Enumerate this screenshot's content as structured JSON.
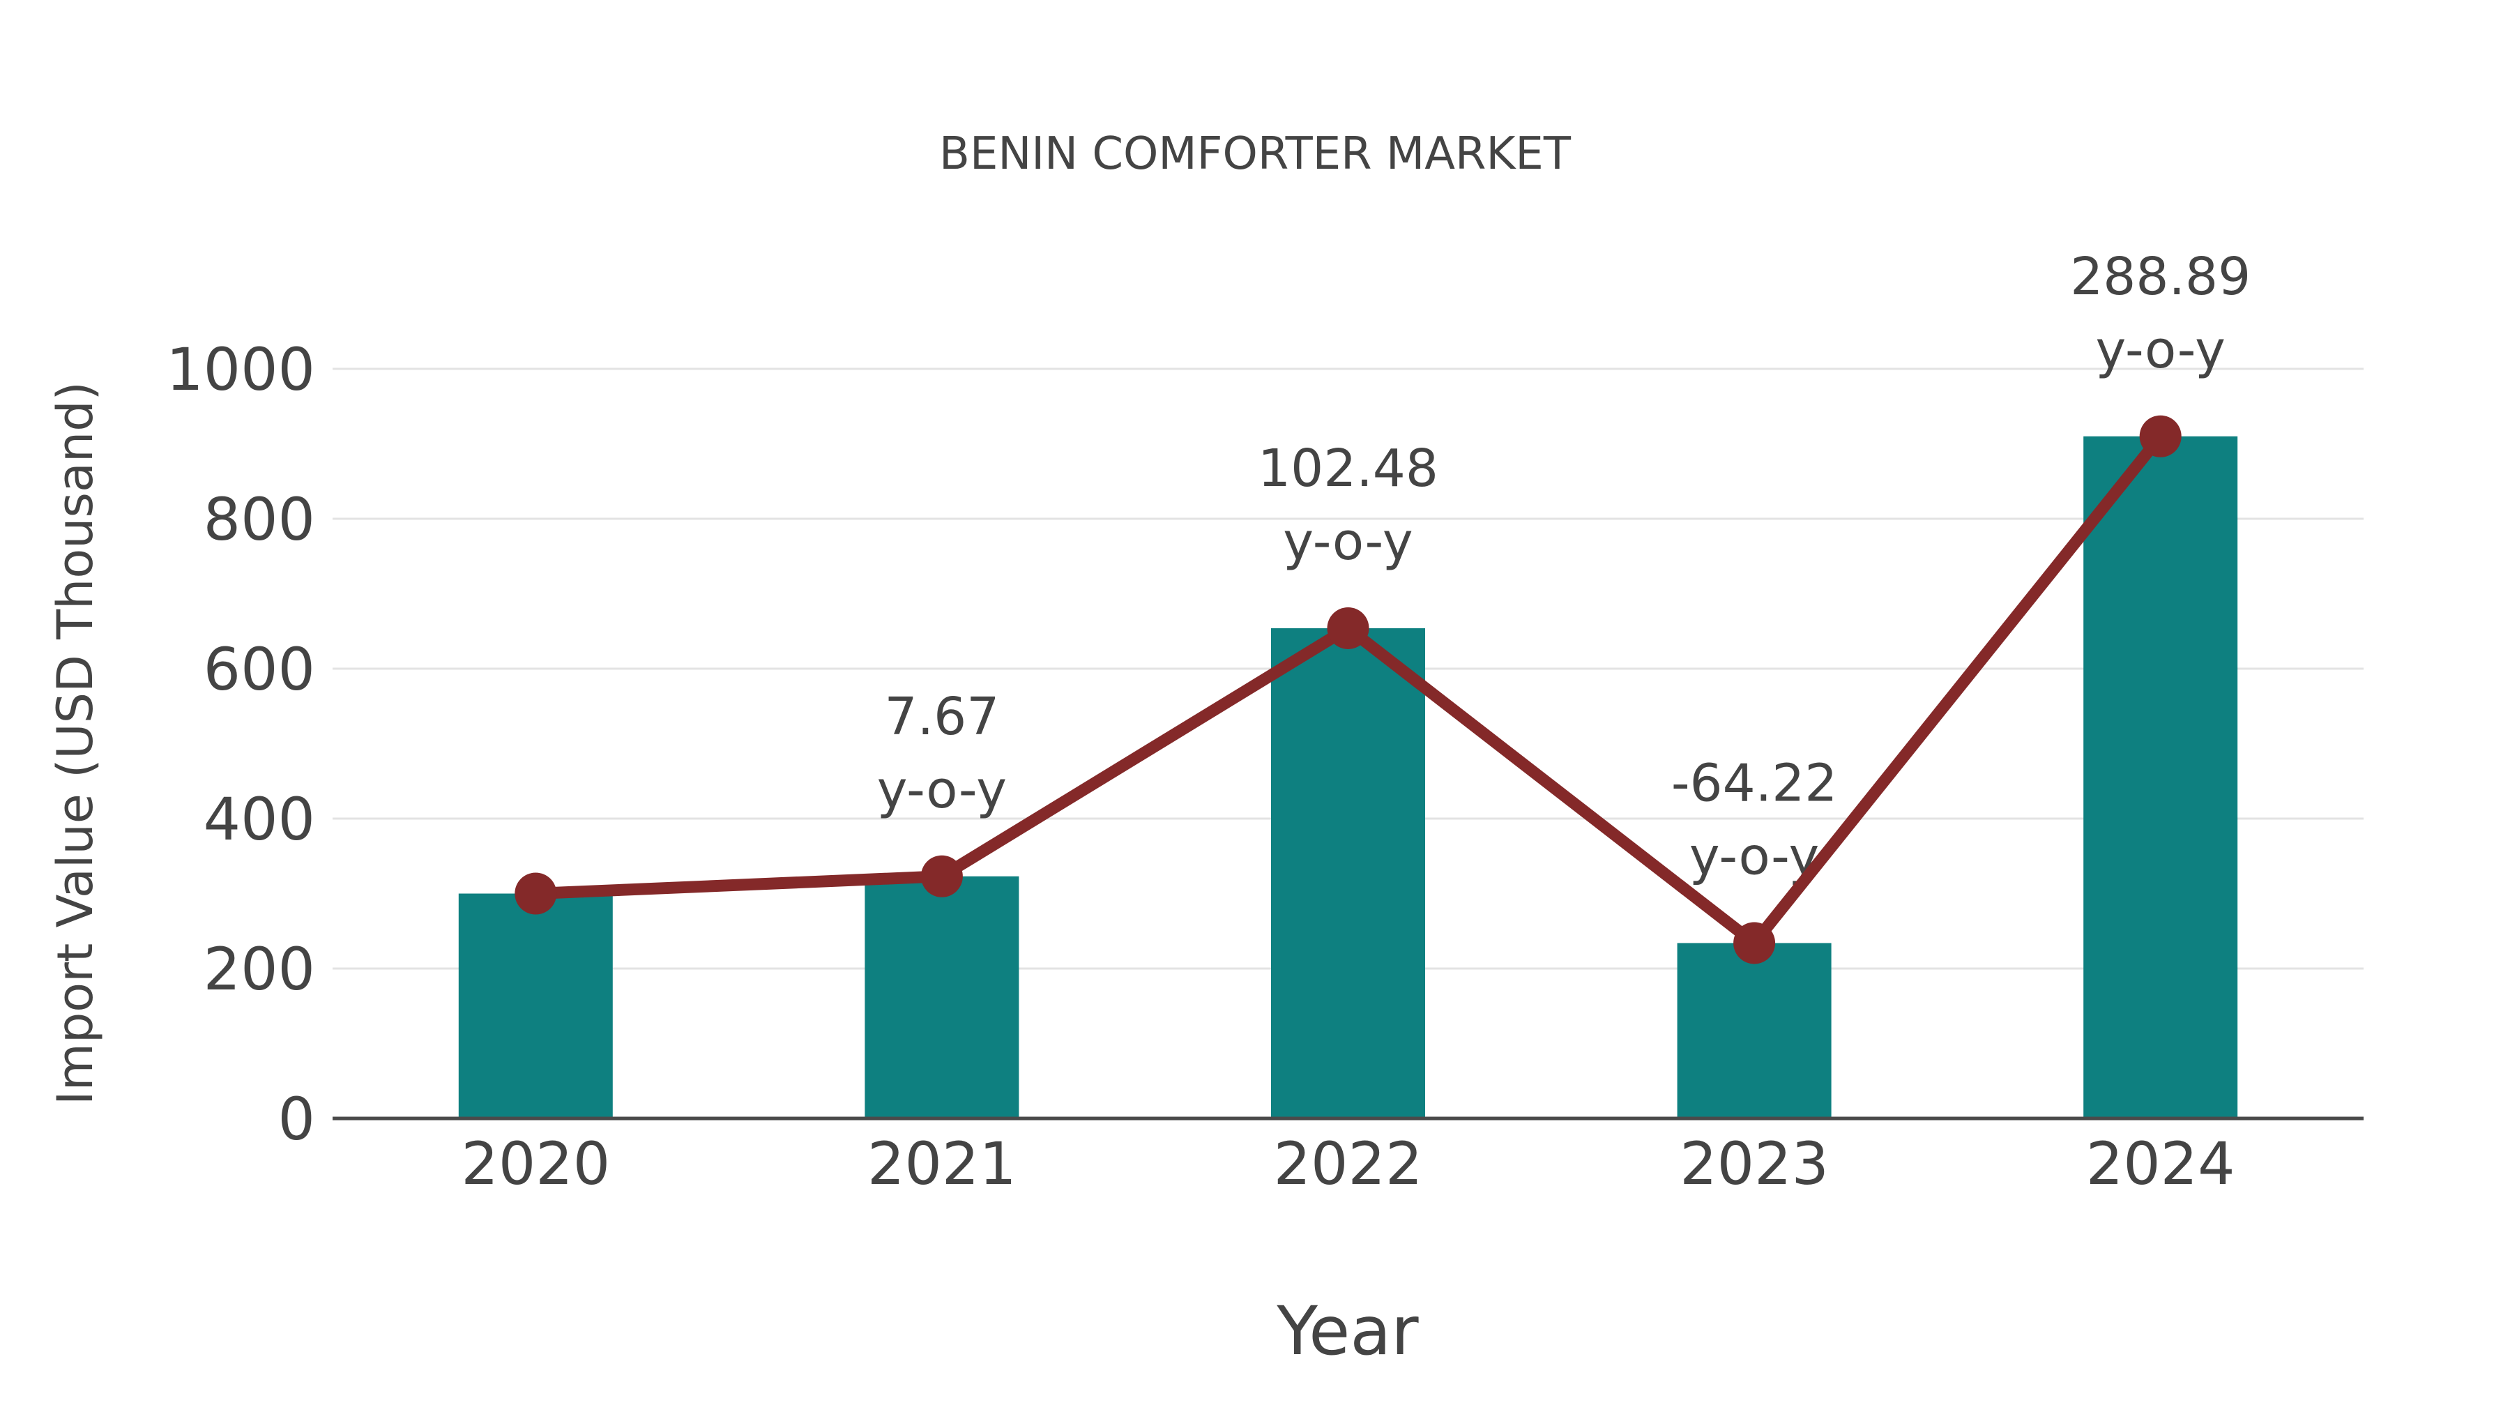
{
  "chart_data": {
    "type": "bar",
    "subtype": "bar-with-line-markers",
    "title": "BENIN COMFORTER MARKET",
    "xlabel": "Year",
    "ylabel": "Import Value (USD Thousand)",
    "categories": [
      "2020",
      "2021",
      "2022",
      "2023",
      "2024"
    ],
    "series": [
      {
        "name": "Import Value bars",
        "type": "bar",
        "values": [
          300,
          323,
          654,
          234,
          910
        ]
      },
      {
        "name": "Import Value trend line",
        "type": "line",
        "values": [
          300,
          323,
          654,
          234,
          910
        ]
      }
    ],
    "annotations": [
      {
        "category": "2021",
        "value_label": "7.67",
        "suffix_label": "y-o-y"
      },
      {
        "category": "2022",
        "value_label": "102.48",
        "suffix_label": "y-o-y"
      },
      {
        "category": "2023",
        "value_label": "-64.22",
        "suffix_label": "y-o-y"
      },
      {
        "category": "2024",
        "value_label": "288.89",
        "suffix_label": "y-o-y"
      }
    ],
    "yticks": [
      0,
      200,
      400,
      600,
      800,
      1000
    ],
    "ylim": [
      0,
      1000
    ],
    "grid": "horizontal",
    "legend_position": "none",
    "colors": {
      "bar": "#0e8080",
      "line": "#842929",
      "marker": "#842929",
      "text": "#444444",
      "grid": "#e3e3e3",
      "axis": "#4a4a4a",
      "background": "#ffffff"
    }
  }
}
